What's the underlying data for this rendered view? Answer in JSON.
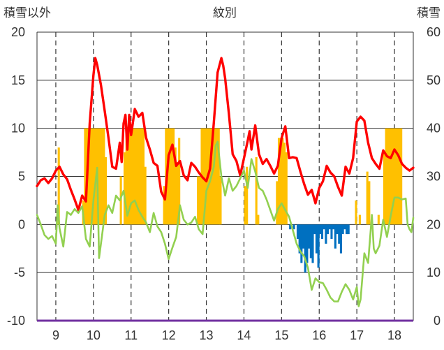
{
  "chart_data": {
    "type": "line",
    "title": "紋別",
    "left_axis": {
      "label": "積雪以外",
      "ylim": [
        -10,
        20
      ],
      "ticks": [
        "-10",
        "-5",
        "0",
        "5",
        "10",
        "15",
        "20"
      ]
    },
    "right_axis": {
      "label": "積雪",
      "ylim": [
        0,
        60
      ],
      "ticks": [
        "0",
        "10",
        "20",
        "30",
        "40",
        "50",
        "60"
      ]
    },
    "x_axis": {
      "xlim": [
        8.5,
        18.5
      ],
      "ticks": [
        9,
        10,
        11,
        12,
        13,
        14,
        15,
        16,
        17,
        18
      ],
      "tick_labels": [
        "9",
        "10",
        "11",
        "12",
        "13",
        "14",
        "15",
        "16",
        "17",
        "18"
      ]
    },
    "grid": {
      "vertical": "dashed",
      "horizontal": "solid"
    },
    "colors": {
      "red_line": "#ff0000",
      "green_line": "#92d050",
      "orange_bars": "#ffc000",
      "blue_bars": "#0070c0",
      "bottom_line": "#7030a0",
      "grid": "#333333"
    },
    "series": [
      {
        "kind": "line",
        "axis": "left",
        "color": "#ff0000",
        "points": [
          [
            8.5,
            4.0
          ],
          [
            8.6,
            4.6
          ],
          [
            8.7,
            4.8
          ],
          [
            8.8,
            4.3
          ],
          [
            8.9,
            4.8
          ],
          [
            9.0,
            5.6
          ],
          [
            9.1,
            6.0
          ],
          [
            9.2,
            5.2
          ],
          [
            9.3,
            4.7
          ],
          [
            9.4,
            3.6
          ],
          [
            9.5,
            2.6
          ],
          [
            9.6,
            1.5
          ],
          [
            9.7,
            3.0
          ],
          [
            9.8,
            2.4
          ],
          [
            9.9,
            10.5
          ],
          [
            10.0,
            15.5
          ],
          [
            10.05,
            17.3
          ],
          [
            10.1,
            16.6
          ],
          [
            10.2,
            14.5
          ],
          [
            10.3,
            11.8
          ],
          [
            10.4,
            9.0
          ],
          [
            10.5,
            6.0
          ],
          [
            10.6,
            5.8
          ],
          [
            10.7,
            8.5
          ],
          [
            10.75,
            6.5
          ],
          [
            10.8,
            10.5
          ],
          [
            10.85,
            11.4
          ],
          [
            10.9,
            7.8
          ],
          [
            10.95,
            11.4
          ],
          [
            11.0,
            9.3
          ],
          [
            11.1,
            12.0
          ],
          [
            11.2,
            11.2
          ],
          [
            11.3,
            11.6
          ],
          [
            11.4,
            9.0
          ],
          [
            11.5,
            7.8
          ],
          [
            11.6,
            6.4
          ],
          [
            11.7,
            6.1
          ],
          [
            11.8,
            3.4
          ],
          [
            11.9,
            2.6
          ],
          [
            12.0,
            7.2
          ],
          [
            12.1,
            8.3
          ],
          [
            12.2,
            6.1
          ],
          [
            12.3,
            6.6
          ],
          [
            12.4,
            5.1
          ],
          [
            12.5,
            4.6
          ],
          [
            12.6,
            6.4
          ],
          [
            12.7,
            6.0
          ],
          [
            12.8,
            5.4
          ],
          [
            12.9,
            4.9
          ],
          [
            13.0,
            4.5
          ],
          [
            13.1,
            5.8
          ],
          [
            13.2,
            10.6
          ],
          [
            13.3,
            15.8
          ],
          [
            13.4,
            17.3
          ],
          [
            13.45,
            16.5
          ],
          [
            13.5,
            15.2
          ],
          [
            13.6,
            11.5
          ],
          [
            13.7,
            7.3
          ],
          [
            13.8,
            6.6
          ],
          [
            13.9,
            5.1
          ],
          [
            14.0,
            6.9
          ],
          [
            14.1,
            8.7
          ],
          [
            14.15,
            9.7
          ],
          [
            14.2,
            7.8
          ],
          [
            14.3,
            10.3
          ],
          [
            14.4,
            7.3
          ],
          [
            14.5,
            6.3
          ],
          [
            14.6,
            6.8
          ],
          [
            14.7,
            6.1
          ],
          [
            14.8,
            5.3
          ],
          [
            14.9,
            6.1
          ],
          [
            15.0,
            9.0
          ],
          [
            15.1,
            10.2
          ],
          [
            15.2,
            6.9
          ],
          [
            15.3,
            7.0
          ],
          [
            15.4,
            6.9
          ],
          [
            15.5,
            5.5
          ],
          [
            15.6,
            4.2
          ],
          [
            15.7,
            3.1
          ],
          [
            15.8,
            3.6
          ],
          [
            15.9,
            2.2
          ],
          [
            16.0,
            3.8
          ],
          [
            16.1,
            4.5
          ],
          [
            16.2,
            6.1
          ],
          [
            16.3,
            5.4
          ],
          [
            16.4,
            5.0
          ],
          [
            16.5,
            3.9
          ],
          [
            16.6,
            3.0
          ],
          [
            16.7,
            6.0
          ],
          [
            16.8,
            5.3
          ],
          [
            16.9,
            6.9
          ],
          [
            17.0,
            10.7
          ],
          [
            17.1,
            11.2
          ],
          [
            17.2,
            10.8
          ],
          [
            17.3,
            8.5
          ],
          [
            17.4,
            6.9
          ],
          [
            17.5,
            6.3
          ],
          [
            17.6,
            5.8
          ],
          [
            17.7,
            7.7
          ],
          [
            17.8,
            7.1
          ],
          [
            17.9,
            6.9
          ],
          [
            18.0,
            7.8
          ],
          [
            18.1,
            7.2
          ],
          [
            18.2,
            6.3
          ],
          [
            18.3,
            5.9
          ],
          [
            18.4,
            5.6
          ],
          [
            18.5,
            5.9
          ]
        ]
      },
      {
        "kind": "line",
        "axis": "left",
        "color": "#92d050",
        "points": [
          [
            8.5,
            1.0
          ],
          [
            8.6,
            0.0
          ],
          [
            8.7,
            -1.1
          ],
          [
            8.8,
            -1.5
          ],
          [
            8.9,
            -1.2
          ],
          [
            9.0,
            -2.0
          ],
          [
            9.05,
            2.0
          ],
          [
            9.1,
            -0.4
          ],
          [
            9.2,
            -2.3
          ],
          [
            9.3,
            1.3
          ],
          [
            9.4,
            1.0
          ],
          [
            9.5,
            1.6
          ],
          [
            9.6,
            1.2
          ],
          [
            9.7,
            1.9
          ],
          [
            9.8,
            -1.5
          ],
          [
            9.9,
            -2.3
          ],
          [
            10.0,
            2.5
          ],
          [
            10.05,
            4.2
          ],
          [
            10.1,
            5.9
          ],
          [
            10.15,
            -3.5
          ],
          [
            10.2,
            -2.0
          ],
          [
            10.3,
            1.0
          ],
          [
            10.4,
            2.0
          ],
          [
            10.5,
            1.2
          ],
          [
            10.6,
            3.0
          ],
          [
            10.7,
            2.5
          ],
          [
            10.8,
            3.5
          ],
          [
            10.9,
            0.9
          ],
          [
            11.0,
            2.2
          ],
          [
            11.1,
            2.5
          ],
          [
            11.2,
            1.5
          ],
          [
            11.3,
            0.8
          ],
          [
            11.4,
            0.2
          ],
          [
            11.5,
            -0.8
          ],
          [
            11.6,
            1.2
          ],
          [
            11.7,
            -0.2
          ],
          [
            11.8,
            -0.8
          ],
          [
            11.9,
            -2.0
          ],
          [
            12.0,
            -3.6
          ],
          [
            12.1,
            -2.4
          ],
          [
            12.2,
            -1.3
          ],
          [
            12.3,
            2.0
          ],
          [
            12.4,
            0.5
          ],
          [
            12.5,
            0.0
          ],
          [
            12.6,
            0.2
          ],
          [
            12.7,
            0.8
          ],
          [
            12.8,
            -0.5
          ],
          [
            12.9,
            -1.0
          ],
          [
            13.0,
            3.5
          ],
          [
            13.1,
            4.5
          ],
          [
            13.2,
            6.0
          ],
          [
            13.25,
            8.2
          ],
          [
            13.3,
            8.6
          ],
          [
            13.4,
            5.0
          ],
          [
            13.5,
            3.0
          ],
          [
            13.6,
            4.8
          ],
          [
            13.7,
            3.5
          ],
          [
            13.8,
            4.0
          ],
          [
            13.9,
            4.8
          ],
          [
            14.0,
            5.6
          ],
          [
            14.1,
            3.8
          ],
          [
            14.2,
            6.8
          ],
          [
            14.3,
            5.5
          ],
          [
            14.4,
            3.8
          ],
          [
            14.5,
            3.5
          ],
          [
            14.6,
            2.6
          ],
          [
            14.7,
            1.5
          ],
          [
            14.8,
            0.4
          ],
          [
            14.9,
            1.6
          ],
          [
            15.0,
            2.2
          ],
          [
            15.1,
            1.5
          ],
          [
            15.2,
            0.8
          ],
          [
            15.3,
            -0.6
          ],
          [
            15.4,
            -2.0
          ],
          [
            15.5,
            -2.8
          ],
          [
            15.6,
            -3.3
          ],
          [
            15.7,
            -4.5
          ],
          [
            15.8,
            -6.8
          ],
          [
            15.9,
            -5.6
          ],
          [
            16.0,
            -6.0
          ],
          [
            16.1,
            -6.1
          ],
          [
            16.2,
            -6.8
          ],
          [
            16.3,
            -7.6
          ],
          [
            16.4,
            -8.0
          ],
          [
            16.5,
            -8.0
          ],
          [
            16.6,
            -7.0
          ],
          [
            16.7,
            -6.2
          ],
          [
            16.8,
            -6.8
          ],
          [
            16.9,
            -7.8
          ],
          [
            17.0,
            -6.5
          ],
          [
            17.05,
            -8.5
          ],
          [
            17.1,
            -7.8
          ],
          [
            17.2,
            -3.0
          ],
          [
            17.3,
            -4.0
          ],
          [
            17.4,
            1.0
          ],
          [
            17.45,
            -2.5
          ],
          [
            17.5,
            -3.0
          ],
          [
            17.6,
            -2.2
          ],
          [
            17.7,
            0.5
          ],
          [
            17.8,
            -1.3
          ],
          [
            17.9,
            0.9
          ],
          [
            18.0,
            2.8
          ],
          [
            18.1,
            2.8
          ],
          [
            18.2,
            2.6
          ],
          [
            18.3,
            2.7
          ],
          [
            18.35,
            0.0
          ],
          [
            18.4,
            -0.5
          ],
          [
            18.45,
            -0.8
          ],
          [
            18.5,
            0.7
          ]
        ]
      },
      {
        "kind": "bars",
        "axis": "right",
        "color": "#ffc000",
        "baseline": 20,
        "segments": [
          [
            9.05,
            9.1,
            36
          ],
          [
            9.7,
            9.75,
            25
          ],
          [
            9.75,
            10.3,
            40
          ],
          [
            10.3,
            10.35,
            34
          ],
          [
            10.7,
            10.75,
            30
          ],
          [
            10.8,
            10.85,
            35
          ],
          [
            10.85,
            11.35,
            40
          ],
          [
            11.35,
            11.4,
            32
          ],
          [
            11.85,
            11.9,
            28
          ],
          [
            11.9,
            12.15,
            40
          ],
          [
            12.15,
            12.2,
            36
          ],
          [
            12.2,
            12.25,
            33
          ],
          [
            12.25,
            12.3,
            38
          ],
          [
            12.75,
            12.85,
            30
          ],
          [
            12.85,
            13.35,
            40
          ],
          [
            13.35,
            13.4,
            30
          ],
          [
            14.0,
            14.05,
            28
          ],
          [
            14.05,
            14.1,
            32
          ],
          [
            14.3,
            14.35,
            34
          ],
          [
            14.35,
            14.4,
            22
          ],
          [
            14.85,
            14.9,
            29
          ],
          [
            14.9,
            15.05,
            38
          ],
          [
            15.05,
            15.1,
            37
          ],
          [
            15.1,
            15.15,
            35
          ],
          [
            16.95,
            17.0,
            25
          ],
          [
            17.05,
            17.1,
            22
          ],
          [
            17.25,
            17.3,
            31
          ],
          [
            17.3,
            17.35,
            29
          ],
          [
            17.55,
            17.6,
            22
          ],
          [
            17.7,
            17.75,
            35
          ],
          [
            17.75,
            18.2,
            40
          ]
        ]
      },
      {
        "kind": "bars",
        "axis": "right",
        "color": "#0070c0",
        "baseline": 20,
        "segments": [
          [
            15.2,
            15.25,
            19
          ],
          [
            15.3,
            15.35,
            19
          ],
          [
            15.4,
            15.45,
            17
          ],
          [
            15.45,
            15.5,
            14
          ],
          [
            15.5,
            15.55,
            12
          ],
          [
            15.55,
            15.6,
            15
          ],
          [
            15.6,
            15.65,
            10
          ],
          [
            15.65,
            15.7,
            12
          ],
          [
            15.7,
            15.75,
            15
          ],
          [
            15.75,
            15.8,
            13
          ],
          [
            15.8,
            15.85,
            12
          ],
          [
            15.85,
            15.9,
            18
          ],
          [
            15.9,
            15.95,
            14
          ],
          [
            15.95,
            16.0,
            11
          ],
          [
            16.0,
            16.05,
            18
          ],
          [
            16.05,
            16.1,
            17
          ],
          [
            16.1,
            16.15,
            19
          ],
          [
            16.15,
            16.2,
            16
          ],
          [
            16.2,
            16.25,
            18
          ],
          [
            16.25,
            16.3,
            19
          ],
          [
            16.3,
            16.35,
            17
          ],
          [
            16.35,
            16.4,
            19
          ],
          [
            16.4,
            16.45,
            15
          ],
          [
            16.45,
            16.5,
            18
          ],
          [
            16.5,
            16.55,
            16
          ],
          [
            16.55,
            16.6,
            14
          ],
          [
            16.6,
            16.65,
            18
          ],
          [
            16.65,
            16.7,
            19
          ],
          [
            16.7,
            16.75,
            18
          ],
          [
            16.75,
            16.8,
            18
          ]
        ]
      }
    ]
  }
}
